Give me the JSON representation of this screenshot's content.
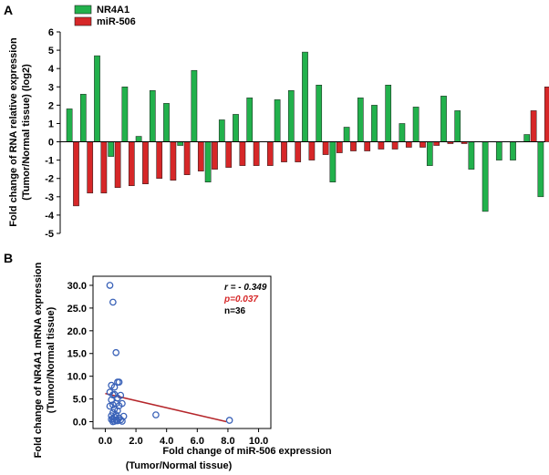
{
  "colors": {
    "nr4a1": "#22b14c",
    "mir506": "#d62728",
    "scatter": "#3a62b8",
    "fit": "#b5262b",
    "annot_p": "#d62728"
  },
  "chart_data": [
    {
      "panel_label": "A",
      "type": "bar",
      "series": [
        {
          "name": "NR4A1",
          "values": [
            1.8,
            2.6,
            4.7,
            -0.8,
            3.0,
            0.3,
            2.8,
            2.1,
            -0.2,
            3.9,
            -2.2,
            1.2,
            1.5,
            2.4,
            0.0,
            2.3,
            2.8,
            4.9,
            3.1,
            -2.2,
            0.8,
            2.4,
            2.0,
            3.1,
            1.0,
            1.9,
            -1.3,
            2.5,
            1.7,
            -1.5,
            -3.8,
            -1.0,
            -1.0,
            0.4,
            -3.0
          ]
        },
        {
          "name": "miR-506",
          "values": [
            -3.5,
            -2.8,
            -2.8,
            -2.5,
            -2.4,
            -2.3,
            -2.0,
            -2.1,
            -1.8,
            -1.6,
            -1.5,
            -1.4,
            -1.3,
            -1.3,
            -1.3,
            -1.1,
            -1.1,
            -1.0,
            -0.7,
            -0.6,
            -0.5,
            -0.5,
            -0.4,
            -0.4,
            -0.3,
            -0.3,
            -0.2,
            -0.1,
            -0.1,
            0.0,
            0.0,
            0.0,
            0.0,
            1.7,
            3.0
          ]
        }
      ],
      "ylabel_lines": [
        "Fold change of RNA relative expression",
        "(Tumor/Normal tissue) (log2)"
      ],
      "ylim": [
        -5,
        6
      ],
      "yticks": [
        -5,
        -4,
        -3,
        -2,
        -1,
        0,
        1,
        2,
        3,
        4,
        5,
        6
      ]
    },
    {
      "panel_label": "B",
      "type": "scatter",
      "x": [
        0.3,
        0.5,
        0.7,
        0.4,
        0.6,
        0.8,
        0.5,
        0.9,
        0.3,
        0.6,
        0.8,
        1.0,
        0.4,
        0.7,
        0.5,
        0.9,
        1.1,
        0.6,
        0.8,
        0.3,
        0.5,
        0.7,
        1.2,
        0.4,
        0.6,
        0.9,
        0.5,
        1.0,
        0.7,
        0.4,
        0.8,
        0.6,
        0.5,
        1.1,
        3.3,
        8.1
      ],
      "y": [
        30.0,
        26.3,
        15.2,
        8.0,
        7.6,
        8.7,
        5.9,
        8.7,
        6.5,
        6.0,
        5.2,
        5.8,
        4.8,
        4.0,
        3.7,
        3.5,
        4.0,
        2.8,
        2.4,
        3.4,
        2.0,
        1.5,
        1.2,
        1.3,
        1.0,
        0.8,
        0.6,
        0.4,
        0.3,
        0.5,
        0.2,
        0.1,
        0.0,
        0.1,
        1.5,
        0.3
      ],
      "fit": {
        "x0": 0.0,
        "y0": 6.2,
        "x1": 7.9,
        "y1": 0.0
      },
      "xlabel": "Fold change of miR-506 expression",
      "xlabel_sub": "(Tumor/Normal tissue)",
      "ylabel_lines": [
        "Fold change of NR4A1 mRNA expression",
        "(Tumor/Normal tissue)"
      ],
      "xlim": [
        -0.8,
        10.8
      ],
      "ylim": [
        -1.5,
        32
      ],
      "xticks": [
        "0.0",
        "2.0",
        "4.0",
        "6.0",
        "8.0",
        "10.0"
      ],
      "yticks": [
        "0.0",
        "5.0",
        "10.0",
        "15.0",
        "20.0",
        "25.0",
        "30.0"
      ],
      "annotations": {
        "r": "r = - 0.349",
        "p": "p=0.037",
        "n": "n=36"
      }
    }
  ]
}
